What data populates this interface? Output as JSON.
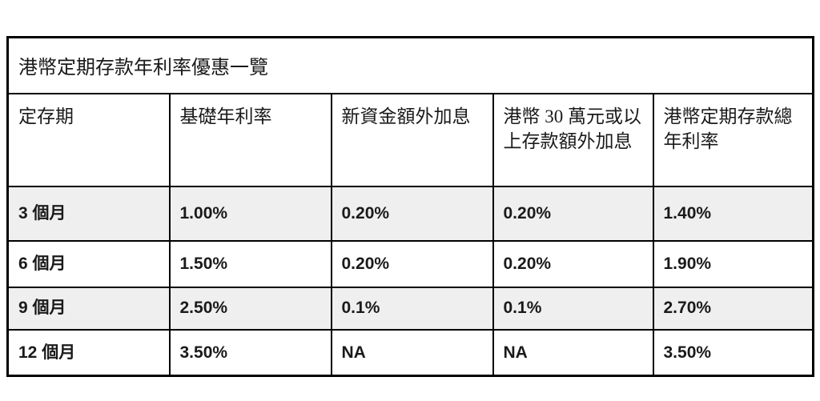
{
  "table": {
    "title": "港幣定期存款年利率優惠一覽",
    "headers": [
      "定存期",
      "基礎年利率",
      "新資金額外加息",
      "港幣 30 萬元或以上存款額外加息",
      "港幣定期存款總年利率"
    ],
    "rows": [
      [
        "3 個月",
        "1.00%",
        "0.20%",
        "0.20%",
        "1.40%"
      ],
      [
        "6 個月",
        "1.50%",
        "0.20%",
        "0.20%",
        "1.90%"
      ],
      [
        "9 個月",
        "2.50%",
        "0.1%",
        "0.1%",
        "2.70%"
      ],
      [
        "12 個月",
        "3.50%",
        "NA",
        "NA",
        "3.50%"
      ]
    ],
    "colors": {
      "border": "#000000",
      "alt_row_bg": "#efefef",
      "row_bg": "#ffffff",
      "text": "#1a1a1a"
    }
  }
}
